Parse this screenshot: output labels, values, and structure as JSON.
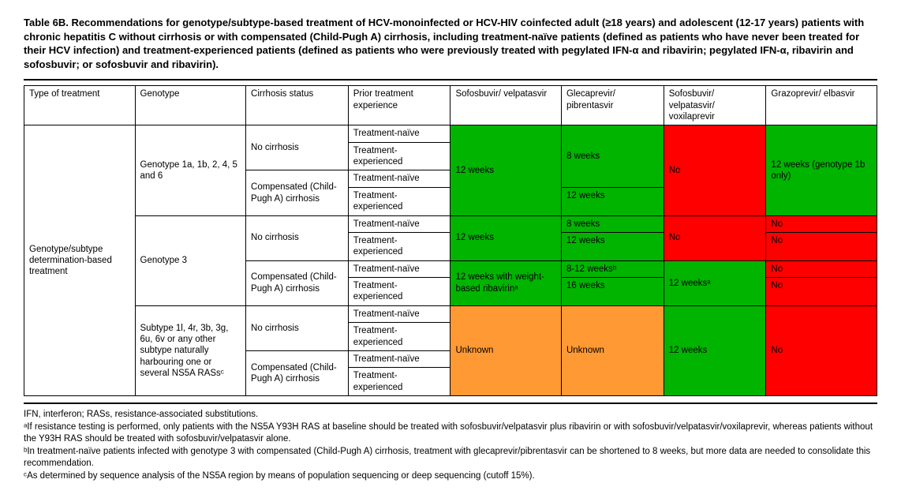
{
  "caption": "Table 6B. Recommendations for genotype/subtype-based treatment of HCV-monoinfected or HCV-HIV coinfected adult (≥18 years) and adolescent (12-17 years) patients with chronic hepatitis C without cirrhosis or with compensated (Child-Pugh A) cirrhosis, including treatment-naïve patients (defined as patients who have never been treated for their HCV infection) and treatment-experienced patients (defined as patients who were previously treated with pegylated IFN-α and ribavirin; pegylated IFN-α, ribavirin and sofosbuvir; or sofosbuvir and ribavirin).",
  "headers": {
    "c1": "Type of treatment",
    "c2": "Genotype",
    "c3": "Cirrhosis status",
    "c4": "Prior treatment experience",
    "c5": "Sofosbuvir/ velpatasvir",
    "c6": "Glecaprevir/ pibrentasvir",
    "c7": "Sofosbuvir/ velpatasvir/ voxilaprevir",
    "c8": "Grazoprevir/ elbasvir"
  },
  "row_label": "Genotype/subtype determination-based treatment",
  "geno": {
    "g1": "Genotype 1a, 1b, 2, 4, 5 and 6",
    "g2": "Genotype 3",
    "g3": "Subtype 1l, 4r, 3b, 3g, 6u, 6v or any other subtype naturally harbouring one or several NS5A RASsᶜ"
  },
  "cirr": {
    "no": "No cirrhosis",
    "comp": "Compensated (Child-Pugh A) cirrhosis"
  },
  "prior": {
    "naive": "Treatment-naïve",
    "exp": "Treatment-experienced"
  },
  "cells": {
    "g1_sv": "12 weeks",
    "g1_gp_nc": "8 weeks",
    "g1_gp_comp": "12 weeks",
    "g1_svv": "No",
    "g1_ge": "12 weeks (genotype 1b only)",
    "g2_sv_nc": "12 weeks",
    "g2_sv_comp": "12 weeks with weight-based ribavirinᵃ",
    "g2_gp_nc_naive": "8 weeks",
    "g2_gp_nc_exp": "12 weeks",
    "g2_gp_comp_naive": "8-12 weeksᵇ",
    "g2_gp_comp_exp": "16 weeks",
    "g2_svv_nc": "No",
    "g2_svv_comp": "12 weeksᵃ",
    "g2_ge_1": "No",
    "g2_ge_2": "No",
    "g2_ge_3": "No",
    "g2_ge_4": "No",
    "g3_sv": "Unknown",
    "g3_gp": "Unknown",
    "g3_svv": "12 weeks",
    "g3_ge": "No"
  },
  "footnotes": {
    "abbr": "IFN, interferon; RASs, resistance-associated substitutions.",
    "a": "ᵃIf resistance testing is performed, only patients with the NS5A Y93H RAS at baseline should be treated with sofosbuvir/velpatasvir plus ribavirin or with sofosbuvir/velpatasvir/voxilaprevir, whereas patients without the Y93H RAS should be treated with sofosbuvir/velpatasvir alone.",
    "b": "ᵇIn treatment-naïve patients infected with genotype 3 with compensated (Child-Pugh A) cirrhosis, treatment with glecaprevir/pibrentasvir can be shortened to 8 weeks, but more data are needed to consolidate this recommendation.",
    "c": "ᶜAs determined by sequence analysis of the NS5A region by means of population sequencing or deep sequencing (cutoff 15%)."
  },
  "colors": {
    "green": "#00b400",
    "red": "#ff0000",
    "orange": "#ff9933"
  }
}
